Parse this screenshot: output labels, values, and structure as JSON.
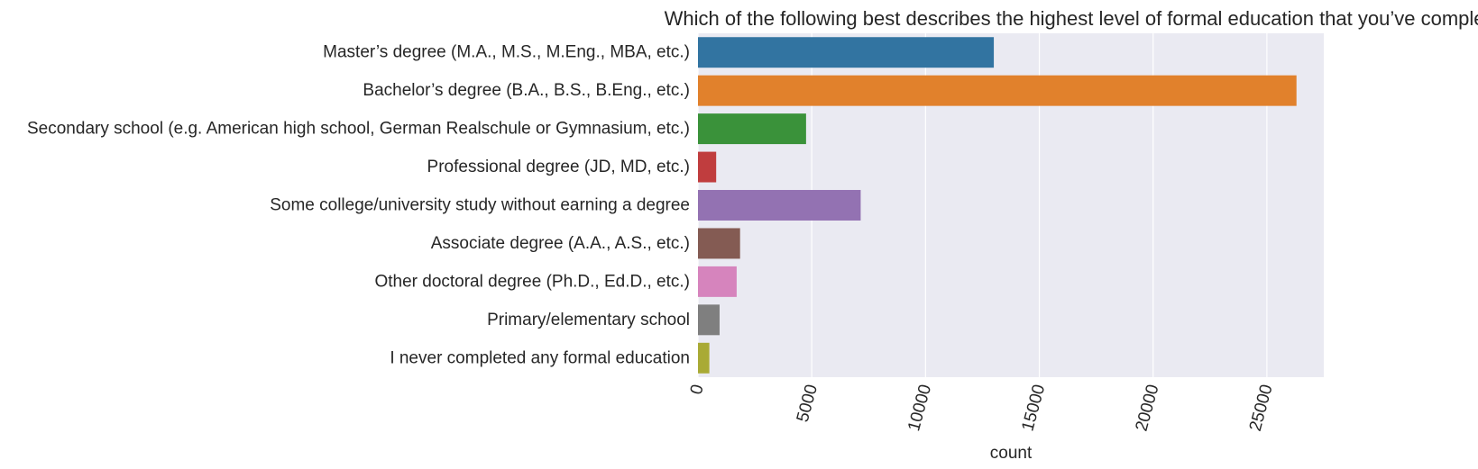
{
  "chart_data": {
    "type": "bar",
    "orientation": "horizontal",
    "title": "Which of the following best describes the highest level of formal education that you’ve completed?",
    "xlabel": "count",
    "ylabel": "",
    "xlim": [
      0,
      27500
    ],
    "xticks": [
      0,
      5000,
      10000,
      15000,
      20000,
      25000
    ],
    "grid": true,
    "legend": "none",
    "background_color": "#EAEAF2",
    "categories": [
      "Master’s degree (M.A., M.S., M.Eng., MBA, etc.)",
      "Bachelor’s degree (B.A., B.S., B.Eng., etc.)",
      "Secondary school (e.g. American high school, German Realschule or Gymnasium, etc.)",
      "Professional degree (JD, MD, etc.)",
      "Some college/university study without earning a degree",
      "Associate degree (A.A., A.S., etc.)",
      "Other doctoral degree (Ph.D., Ed.D., etc.)",
      "Primary/elementary school",
      "I never completed any formal education"
    ],
    "values": [
      13000,
      26300,
      4750,
      800,
      7150,
      1850,
      1700,
      950,
      500
    ],
    "colors": [
      "#3274A1",
      "#E1812C",
      "#3A923A",
      "#C03D3E",
      "#9372B2",
      "#845B53",
      "#D684BD",
      "#7F7F7F",
      "#A9AA35"
    ]
  }
}
